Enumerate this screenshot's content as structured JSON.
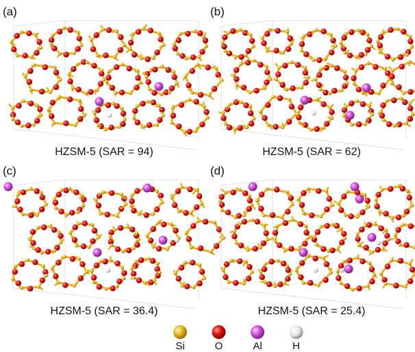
{
  "panels": [
    {
      "label": "(a)",
      "caption": "HZSM-5 (SAR = 94)"
    },
    {
      "label": "(b)",
      "caption": "HZSM-5 (SAR = 62)"
    },
    {
      "label": "(c)",
      "caption": "HZSM-5 (SAR = 36.4)"
    },
    {
      "label": "(d)",
      "caption": "HZSM-5 (SAR = 25.4)"
    }
  ],
  "legend": [
    "Si",
    "O",
    "Al",
    "H"
  ]
}
